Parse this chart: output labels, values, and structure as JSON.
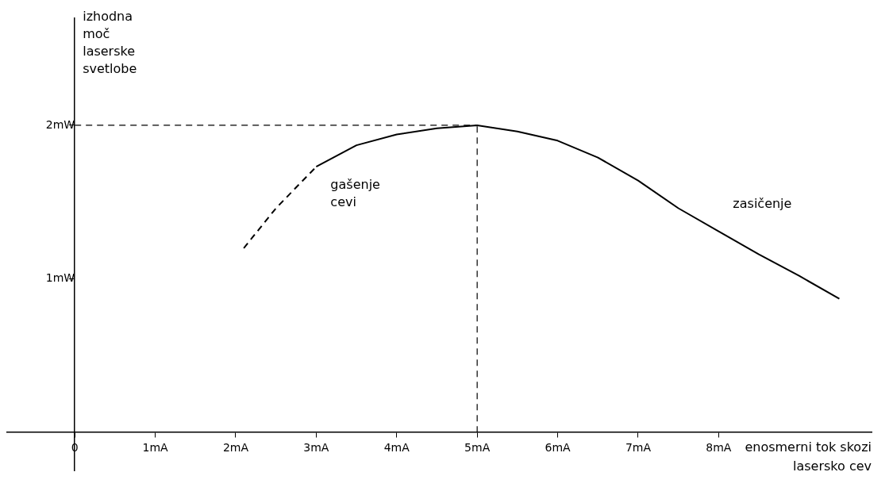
{
  "chart_data": {
    "type": "line",
    "xlabel": "enosmerni tok skozi lasersko cev",
    "ylabel": "izhodna moč laserske svetlobe",
    "series": [
      {
        "type": "line",
        "color": "#000000",
        "line_style": "dashed",
        "x": [
          2.1,
          2.5,
          3.0
        ],
        "values": [
          1.2,
          1.46,
          1.73
        ]
      },
      {
        "type": "line",
        "color": "#000000",
        "line_style": "solid",
        "x": [
          3.0,
          3.5,
          4.0,
          4.5,
          5.0,
          5.5,
          6.0,
          6.5,
          7.0,
          7.5,
          8.0,
          8.5,
          9.0,
          9.5
        ],
        "values": [
          1.73,
          1.87,
          1.94,
          1.98,
          2.0,
          1.96,
          1.9,
          1.79,
          1.64,
          1.46,
          1.31,
          1.16,
          1.02,
          0.87
        ]
      }
    ],
    "xlim": [
      -0.85,
      9.9
    ],
    "ylim": [
      -0.25,
      2.7
    ],
    "xticks": [
      {
        "value": 0,
        "label": "0"
      },
      {
        "value": 1,
        "label": "1mA"
      },
      {
        "value": 2,
        "label": "2mA"
      },
      {
        "value": 3,
        "label": "3mA"
      },
      {
        "value": 4,
        "label": "4mA"
      },
      {
        "value": 5,
        "label": "5mA"
      },
      {
        "value": 6,
        "label": "6mA"
      },
      {
        "value": 7,
        "label": "7mA"
      },
      {
        "value": 8,
        "label": "8mA"
      }
    ],
    "yticks": [
      {
        "value": 1,
        "label": "1mW"
      },
      {
        "value": 2,
        "label": "2mW"
      }
    ],
    "ref_lines": [
      {
        "axis": "y",
        "value": 2,
        "line_style": "dashed"
      },
      {
        "axis": "x",
        "value": 5,
        "line_style": "dashed"
      }
    ],
    "annotations": [
      "gašenje cevi",
      "zasičenje"
    ],
    "marker": "none"
  }
}
